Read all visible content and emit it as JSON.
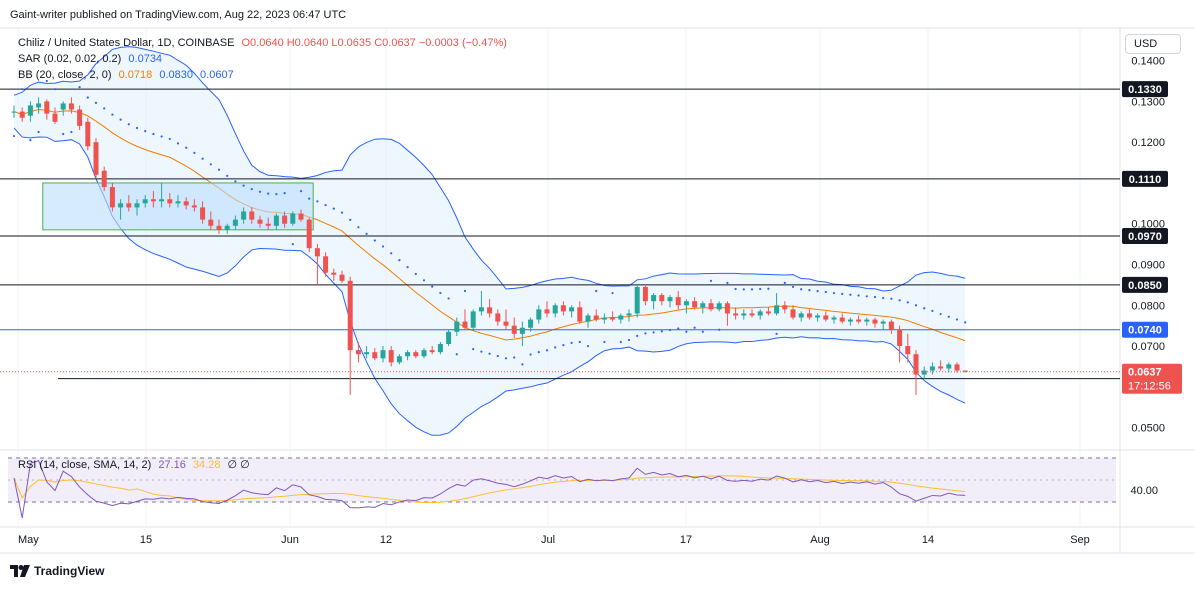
{
  "header": {
    "published": "Gaint-writer published on TradingView.com, Aug 22, 2023 06:47 UTC"
  },
  "legend": {
    "symbol": "Chiliz / United States Dollar, 1D, COINBASE",
    "ohlc": "O0.0640 H0.0640 L0.0635 C0.0637 −0.0003 (−0.47%)",
    "sar_label": "SAR (0.02, 0.02, 0.2)",
    "sar_value": "0.0734",
    "bb_label": "BB (20, close, 2, 0)",
    "bb_basis": "0.0718",
    "bb_upper": "0.0830",
    "bb_lower": "0.0607",
    "rsi_label": "RSI (14, close, SMA, 14, 2)",
    "rsi_value": "27.16",
    "rsi_sma": "34.28",
    "rsi_extra": "∅ ∅"
  },
  "currency_button": "USD",
  "footer": {
    "brand": "TradingView"
  },
  "colors": {
    "up": "#26a69a",
    "down": "#ef5350",
    "sar": "#2962ff",
    "bb": "#2962ff",
    "bb_fill": "#e3f2fd",
    "basis": "#f57c00",
    "rsi": "#7e57c2",
    "rsi_sma": "#fbc02d",
    "rsi_fill": "#ede7f6",
    "price_label": "#ef5350",
    "level_line": "#131722",
    "blue_level": "#2962ff"
  },
  "chart_data": {
    "type": "candlestick",
    "price_axis": {
      "min": 0.045,
      "max": 0.148,
      "ticks": [
        "0.1400",
        "0.1300",
        "0.1200",
        "0.1000",
        "0.0900",
        "0.0800",
        "0.0700",
        "0.0500"
      ]
    },
    "time_axis": [
      "May",
      "15",
      "Jun",
      "12",
      "Jul",
      "17",
      "Aug",
      "14",
      "Sep"
    ],
    "horizontal_levels": [
      {
        "label": "0.1330",
        "value": 0.133,
        "color": "#131722",
        "box": "dark"
      },
      {
        "label": "0.1110",
        "value": 0.111,
        "color": "#131722",
        "box": "dark"
      },
      {
        "label": "0.0970",
        "value": 0.097,
        "color": "#131722",
        "box": "dark"
      },
      {
        "label": "0.0850",
        "value": 0.085,
        "color": "#131722",
        "box": "dark"
      },
      {
        "label": "0.0740",
        "value": 0.074,
        "color": "#2962ff",
        "box": "blue"
      },
      {
        "label": "0.0620",
        "value": 0.062,
        "color": "#131722",
        "box": "dark"
      }
    ],
    "last_price": {
      "label": "0.0637",
      "value": 0.0637,
      "countdown": "17:12:56"
    },
    "zone": {
      "top": 0.11,
      "bottom": 0.0985,
      "start_index": 4,
      "end_index": 36
    },
    "candles": [
      [
        0.1275,
        0.129,
        0.126,
        0.1275
      ],
      [
        0.1275,
        0.1285,
        0.125,
        0.126
      ],
      [
        0.1265,
        0.13,
        0.125,
        0.129
      ],
      [
        0.1285,
        0.131,
        0.127,
        0.1295
      ],
      [
        0.13,
        0.1305,
        0.1255,
        0.127
      ],
      [
        0.127,
        0.1285,
        0.1245,
        0.125
      ],
      [
        0.128,
        0.13,
        0.1265,
        0.1295
      ],
      [
        0.1295,
        0.131,
        0.127,
        0.128
      ],
      [
        0.128,
        0.129,
        0.123,
        0.124
      ],
      [
        0.125,
        0.126,
        0.118,
        0.119
      ],
      [
        0.12,
        0.121,
        0.111,
        0.112
      ],
      [
        0.113,
        0.114,
        0.108,
        0.109
      ],
      [
        0.109,
        0.11,
        0.103,
        0.104
      ],
      [
        0.104,
        0.106,
        0.101,
        0.105
      ],
      [
        0.105,
        0.107,
        0.103,
        0.104
      ],
      [
        0.104,
        0.106,
        0.102,
        0.105
      ],
      [
        0.105,
        0.107,
        0.104,
        0.106
      ],
      [
        0.106,
        0.108,
        0.104,
        0.1055
      ],
      [
        0.1055,
        0.11,
        0.104,
        0.106
      ],
      [
        0.106,
        0.1075,
        0.104,
        0.105
      ],
      [
        0.105,
        0.107,
        0.104,
        0.1055
      ],
      [
        0.1055,
        0.1065,
        0.1035,
        0.1045
      ],
      [
        0.1045,
        0.106,
        0.103,
        0.104
      ],
      [
        0.104,
        0.1055,
        0.1,
        0.101
      ],
      [
        0.101,
        0.103,
        0.0985,
        0.0995
      ],
      [
        0.0995,
        0.101,
        0.0975,
        0.0985
      ],
      [
        0.0985,
        0.1,
        0.0975,
        0.0995
      ],
      [
        0.0995,
        0.102,
        0.0985,
        0.101
      ],
      [
        0.101,
        0.104,
        0.1,
        0.103
      ],
      [
        0.103,
        0.104,
        0.1,
        0.101
      ],
      [
        0.101,
        0.102,
        0.099,
        0.1
      ],
      [
        0.1,
        0.1015,
        0.0985,
        0.0995
      ],
      [
        0.0995,
        0.1025,
        0.0985,
        0.102
      ],
      [
        0.102,
        0.103,
        0.099,
        0.1
      ],
      [
        0.1,
        0.103,
        0.0995,
        0.1025
      ],
      [
        0.1025,
        0.1035,
        0.1005,
        0.101
      ],
      [
        0.101,
        0.1015,
        0.093,
        0.094
      ],
      [
        0.094,
        0.095,
        0.085,
        0.092
      ],
      [
        0.092,
        0.093,
        0.087,
        0.088
      ],
      [
        0.088,
        0.089,
        0.086,
        0.0875
      ],
      [
        0.0875,
        0.0885,
        0.0855,
        0.086
      ],
      [
        0.086,
        0.087,
        0.058,
        0.069
      ],
      [
        0.069,
        0.071,
        0.066,
        0.068
      ],
      [
        0.068,
        0.07,
        0.067,
        0.0685
      ],
      [
        0.0685,
        0.0695,
        0.0665,
        0.067
      ],
      [
        0.067,
        0.07,
        0.066,
        0.069
      ],
      [
        0.069,
        0.07,
        0.065,
        0.066
      ],
      [
        0.066,
        0.068,
        0.0655,
        0.0675
      ],
      [
        0.0675,
        0.069,
        0.0665,
        0.0685
      ],
      [
        0.0685,
        0.069,
        0.067,
        0.0675
      ],
      [
        0.0675,
        0.0695,
        0.067,
        0.069
      ],
      [
        0.069,
        0.07,
        0.068,
        0.0685
      ],
      [
        0.0685,
        0.071,
        0.068,
        0.0705
      ],
      [
        0.0705,
        0.074,
        0.07,
        0.0735
      ],
      [
        0.0735,
        0.077,
        0.0725,
        0.076
      ],
      [
        0.076,
        0.079,
        0.074,
        0.0745
      ],
      [
        0.0745,
        0.079,
        0.074,
        0.0785
      ],
      [
        0.0785,
        0.0835,
        0.0775,
        0.0795
      ],
      [
        0.0795,
        0.0815,
        0.077,
        0.078
      ],
      [
        0.078,
        0.079,
        0.075,
        0.076
      ],
      [
        0.076,
        0.079,
        0.074,
        0.075
      ],
      [
        0.075,
        0.077,
        0.072,
        0.073
      ],
      [
        0.073,
        0.076,
        0.07,
        0.0745
      ],
      [
        0.0745,
        0.077,
        0.0735,
        0.0765
      ],
      [
        0.0765,
        0.08,
        0.0755,
        0.079
      ],
      [
        0.079,
        0.081,
        0.077,
        0.078
      ],
      [
        0.078,
        0.0805,
        0.077,
        0.08
      ],
      [
        0.08,
        0.081,
        0.0775,
        0.0785
      ],
      [
        0.0785,
        0.08,
        0.077,
        0.0795
      ],
      [
        0.0795,
        0.081,
        0.0755,
        0.076
      ],
      [
        0.076,
        0.078,
        0.0745,
        0.0775
      ],
      [
        0.0775,
        0.079,
        0.076,
        0.0765
      ],
      [
        0.0765,
        0.078,
        0.0755,
        0.077
      ],
      [
        0.077,
        0.0785,
        0.076,
        0.0765
      ],
      [
        0.0765,
        0.078,
        0.0755,
        0.0775
      ],
      [
        0.0775,
        0.079,
        0.076,
        0.078
      ],
      [
        0.078,
        0.085,
        0.077,
        0.0845
      ],
      [
        0.0845,
        0.085,
        0.08,
        0.081
      ],
      [
        0.081,
        0.083,
        0.079,
        0.0825
      ],
      [
        0.0825,
        0.083,
        0.08,
        0.081
      ],
      [
        0.081,
        0.0825,
        0.0795,
        0.082
      ],
      [
        0.082,
        0.0835,
        0.079,
        0.08
      ],
      [
        0.08,
        0.0815,
        0.078,
        0.081
      ],
      [
        0.081,
        0.082,
        0.079,
        0.0795
      ],
      [
        0.0795,
        0.081,
        0.078,
        0.0805
      ],
      [
        0.0805,
        0.0815,
        0.0785,
        0.079
      ],
      [
        0.079,
        0.081,
        0.0785,
        0.0805
      ],
      [
        0.0805,
        0.081,
        0.075,
        0.078
      ],
      [
        0.078,
        0.0795,
        0.0765,
        0.0775
      ],
      [
        0.0775,
        0.079,
        0.0765,
        0.078
      ],
      [
        0.078,
        0.079,
        0.077,
        0.0775
      ],
      [
        0.0775,
        0.079,
        0.0765,
        0.0785
      ],
      [
        0.0785,
        0.0795,
        0.0775,
        0.078
      ],
      [
        0.078,
        0.083,
        0.0775,
        0.08
      ],
      [
        0.08,
        0.081,
        0.078,
        0.079
      ],
      [
        0.079,
        0.08,
        0.0765,
        0.077
      ],
      [
        0.077,
        0.0785,
        0.076,
        0.078
      ],
      [
        0.078,
        0.079,
        0.0765,
        0.077
      ],
      [
        0.077,
        0.078,
        0.076,
        0.0775
      ],
      [
        0.0775,
        0.0785,
        0.076,
        0.0765
      ],
      [
        0.0765,
        0.0775,
        0.0755,
        0.077
      ],
      [
        0.077,
        0.078,
        0.0755,
        0.076
      ],
      [
        0.076,
        0.077,
        0.075,
        0.0765
      ],
      [
        0.0765,
        0.0775,
        0.0755,
        0.076
      ],
      [
        0.076,
        0.077,
        0.075,
        0.0765
      ],
      [
        0.0765,
        0.077,
        0.0745,
        0.0755
      ],
      [
        0.0755,
        0.0765,
        0.074,
        0.076
      ],
      [
        0.076,
        0.0765,
        0.073,
        0.074
      ],
      [
        0.074,
        0.075,
        0.066,
        0.07
      ],
      [
        0.07,
        0.073,
        0.066,
        0.068
      ],
      [
        0.068,
        0.069,
        0.058,
        0.063
      ],
      [
        0.063,
        0.065,
        0.062,
        0.064
      ],
      [
        0.064,
        0.066,
        0.063,
        0.065
      ],
      [
        0.065,
        0.0665,
        0.064,
        0.0645
      ],
      [
        0.0645,
        0.066,
        0.0635,
        0.0655
      ],
      [
        0.0655,
        0.066,
        0.0635,
        0.064
      ],
      [
        0.064,
        0.064,
        0.0635,
        0.0637
      ]
    ],
    "rsi_axis": {
      "label": "40.00",
      "upper": 70,
      "lower": 30,
      "value": 40
    }
  }
}
